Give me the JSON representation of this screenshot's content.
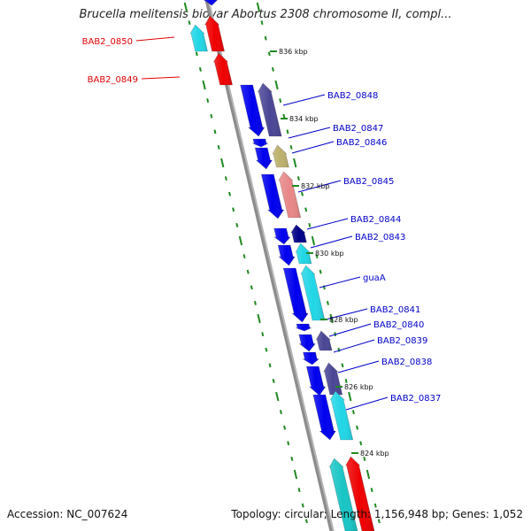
{
  "title": "Brucella melitensis biovar Abortus 2308 chromosome II, compl...",
  "footer": {
    "accession": "Accession: NC_007624",
    "summary": "Topology: circular; Length: 1,156,948 bp; Genes: 1,052"
  },
  "colors": {
    "backbone": "#8c8c8c",
    "ticks": "#1f8a1f",
    "label_forward": "#e00000",
    "label_reverse": "#0000c8",
    "blue": "#0000ee",
    "cyan": "#21d6e6",
    "red": "#ee0000",
    "slate": "#4a4695",
    "khaki": "#bdb06b",
    "salmon": "#e88787",
    "navy": "#000088",
    "teal": "#19c5c5"
  },
  "scale_labels": [
    "836 kbp",
    "834 kbp",
    "832 kbp",
    "830 kbp",
    "828 kbp",
    "826 kbp",
    "824 kbp"
  ],
  "genes": [
    {
      "label": "BAB2_0850",
      "strand": "forward",
      "color": "cyan"
    },
    {
      "label": "BAB2_0849",
      "strand": "forward",
      "color": "red"
    },
    {
      "label": "BAB2_0848",
      "strand": "reverse",
      "color": "blue"
    },
    {
      "label": "BAB2_0847",
      "strand": "reverse",
      "color": "blue"
    },
    {
      "label": "BAB2_0846",
      "strand": "reverse",
      "color": "blue"
    },
    {
      "label": "BAB2_0845",
      "strand": "reverse",
      "color": "blue"
    },
    {
      "label": "BAB2_0844",
      "strand": "reverse",
      "color": "blue"
    },
    {
      "label": "BAB2_0843",
      "strand": "reverse",
      "color": "blue"
    },
    {
      "label": "guaA",
      "strand": "reverse",
      "color": "blue"
    },
    {
      "label": "BAB2_0841",
      "strand": "reverse",
      "color": "blue"
    },
    {
      "label": "BAB2_0840",
      "strand": "reverse",
      "color": "blue"
    },
    {
      "label": "BAB2_0839",
      "strand": "reverse",
      "color": "blue"
    },
    {
      "label": "BAB2_0838",
      "strand": "reverse",
      "color": "blue"
    },
    {
      "label": "BAB2_0837",
      "strand": "reverse",
      "color": "blue"
    }
  ]
}
